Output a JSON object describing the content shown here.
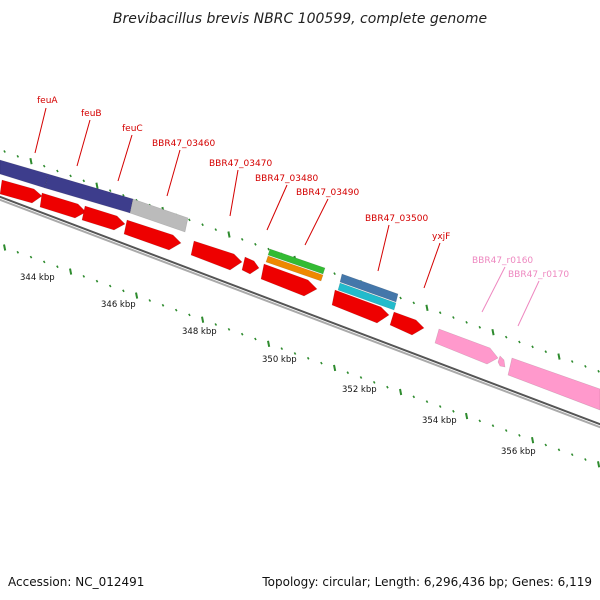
{
  "title": "Brevibacillus brevis NBRC 100599, complete genome",
  "footer": {
    "accession": "Accession: NC_012491",
    "summary": "Topology: circular; Length: 6,296,436 bp; Genes: 6,119"
  },
  "colors": {
    "backbone": "#7f7f7f",
    "tick": "#2e8b2e",
    "gene_label": "#d40000",
    "rna_label": "#ee88c0",
    "cds_red": "#ee0000",
    "cog_purple": "#3d3d8c",
    "cog_grey": "#bbbbbb",
    "cog_green": "#33bb33",
    "cog_orange": "#ee8800",
    "cog_blue": "#4477aa",
    "cog_cyan": "#22bbcc",
    "rna_pink": "#ff99cc"
  },
  "scale_labels": [
    "344 kbp",
    "346 kbp",
    "348 kbp",
    "350 kbp",
    "352 kbp",
    "354 kbp",
    "356 kbp"
  ],
  "gene_labels": [
    {
      "text": "feuA",
      "type": "gene"
    },
    {
      "text": "feuB",
      "type": "gene"
    },
    {
      "text": "feuC",
      "type": "gene"
    },
    {
      "text": "BBR47_03460",
      "type": "gene"
    },
    {
      "text": "BBR47_03470",
      "type": "gene"
    },
    {
      "text": "BBR47_03480",
      "type": "gene"
    },
    {
      "text": "BBR47_03490",
      "type": "gene"
    },
    {
      "text": "BBR47_03500",
      "type": "gene"
    },
    {
      "text": "yxjF",
      "type": "gene"
    },
    {
      "text": "BBR47_r0160",
      "type": "rna"
    },
    {
      "text": "BBR47_r0170",
      "type": "rna"
    }
  ]
}
